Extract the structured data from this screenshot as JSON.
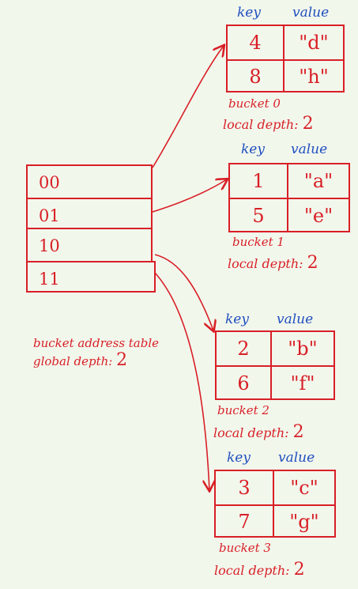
{
  "directory": {
    "entries": [
      "00",
      "01",
      "10",
      "11"
    ],
    "caption": "bucket address table",
    "global_depth_label": "global depth:",
    "global_depth_value": "2"
  },
  "buckets": [
    {
      "key_header": "key",
      "value_header": "value",
      "rows": [
        {
          "key": "4",
          "value": "\"d\""
        },
        {
          "key": "8",
          "value": "\"h\""
        }
      ],
      "name": "bucket 0",
      "local_depth_label": "local depth:",
      "local_depth_value": "2"
    },
    {
      "key_header": "key",
      "value_header": "value",
      "rows": [
        {
          "key": "1",
          "value": "\"a\""
        },
        {
          "key": "5",
          "value": "\"e\""
        }
      ],
      "name": "bucket 1",
      "local_depth_label": "local depth:",
      "local_depth_value": "2"
    },
    {
      "key_header": "key",
      "value_header": "value",
      "rows": [
        {
          "key": "2",
          "value": "\"b\""
        },
        {
          "key": "6",
          "value": "\"f\""
        }
      ],
      "name": "bucket 2",
      "local_depth_label": "local depth:",
      "local_depth_value": "2"
    },
    {
      "key_header": "key",
      "value_header": "value",
      "rows": [
        {
          "key": "3",
          "value": "\"c\""
        },
        {
          "key": "7",
          "value": "\"g\""
        }
      ],
      "name": "bucket 3",
      "local_depth_label": "local depth:",
      "local_depth_value": "2"
    }
  ],
  "colors": {
    "ink": "#d81f26",
    "header_ink": "#1f4fbf",
    "background": "#f2f7ec"
  }
}
